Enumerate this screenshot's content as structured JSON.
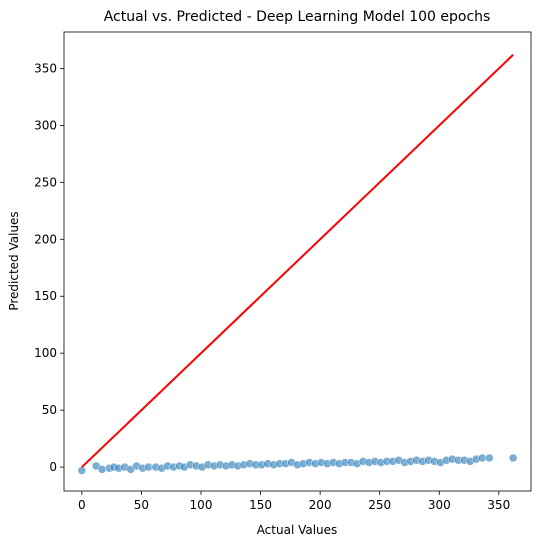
{
  "chart_data": {
    "type": "scatter",
    "title": "Actual vs. Predicted - Deep Learning Model 100 epochs",
    "xlabel": "Actual Values",
    "ylabel": "Predicted Values",
    "xlim": [
      -15,
      377
    ],
    "ylim": [
      -21,
      382
    ],
    "xticks": [
      0,
      50,
      100,
      150,
      200,
      250,
      300,
      350
    ],
    "yticks": [
      0,
      50,
      100,
      150,
      200,
      250,
      300,
      350
    ],
    "grid": false,
    "colors": {
      "points": "#1f77b4",
      "reference_line": "#ff0000"
    },
    "series": [
      {
        "type": "scatter",
        "x": [
          0,
          12,
          17,
          23,
          27,
          31,
          36,
          41,
          46,
          51,
          56,
          62,
          67,
          72,
          77,
          82,
          86,
          91,
          96,
          101,
          106,
          111,
          116,
          121,
          126,
          131,
          136,
          141,
          146,
          151,
          156,
          161,
          166,
          171,
          176,
          181,
          186,
          191,
          196,
          201,
          206,
          211,
          216,
          221,
          226,
          231,
          236,
          241,
          246,
          251,
          256,
          261,
          266,
          271,
          276,
          281,
          286,
          291,
          296,
          301,
          306,
          311,
          316,
          321,
          326,
          331,
          336,
          342,
          362
        ],
        "y": [
          -3,
          1,
          -2,
          -1,
          0,
          -1,
          0,
          -2,
          1,
          -1,
          0,
          0,
          -1,
          1,
          0,
          1,
          0,
          2,
          1,
          0,
          2,
          1,
          2,
          1,
          2,
          1,
          2,
          3,
          2,
          2,
          3,
          2,
          3,
          3,
          4,
          2,
          3,
          4,
          3,
          4,
          3,
          4,
          3,
          4,
          4,
          3,
          5,
          4,
          5,
          4,
          5,
          5,
          6,
          4,
          5,
          6,
          5,
          6,
          5,
          4,
          6,
          7,
          6,
          6,
          5,
          7,
          8,
          8,
          8
        ]
      },
      {
        "type": "line",
        "x": [
          0,
          362
        ],
        "y": [
          0,
          362
        ]
      }
    ]
  }
}
